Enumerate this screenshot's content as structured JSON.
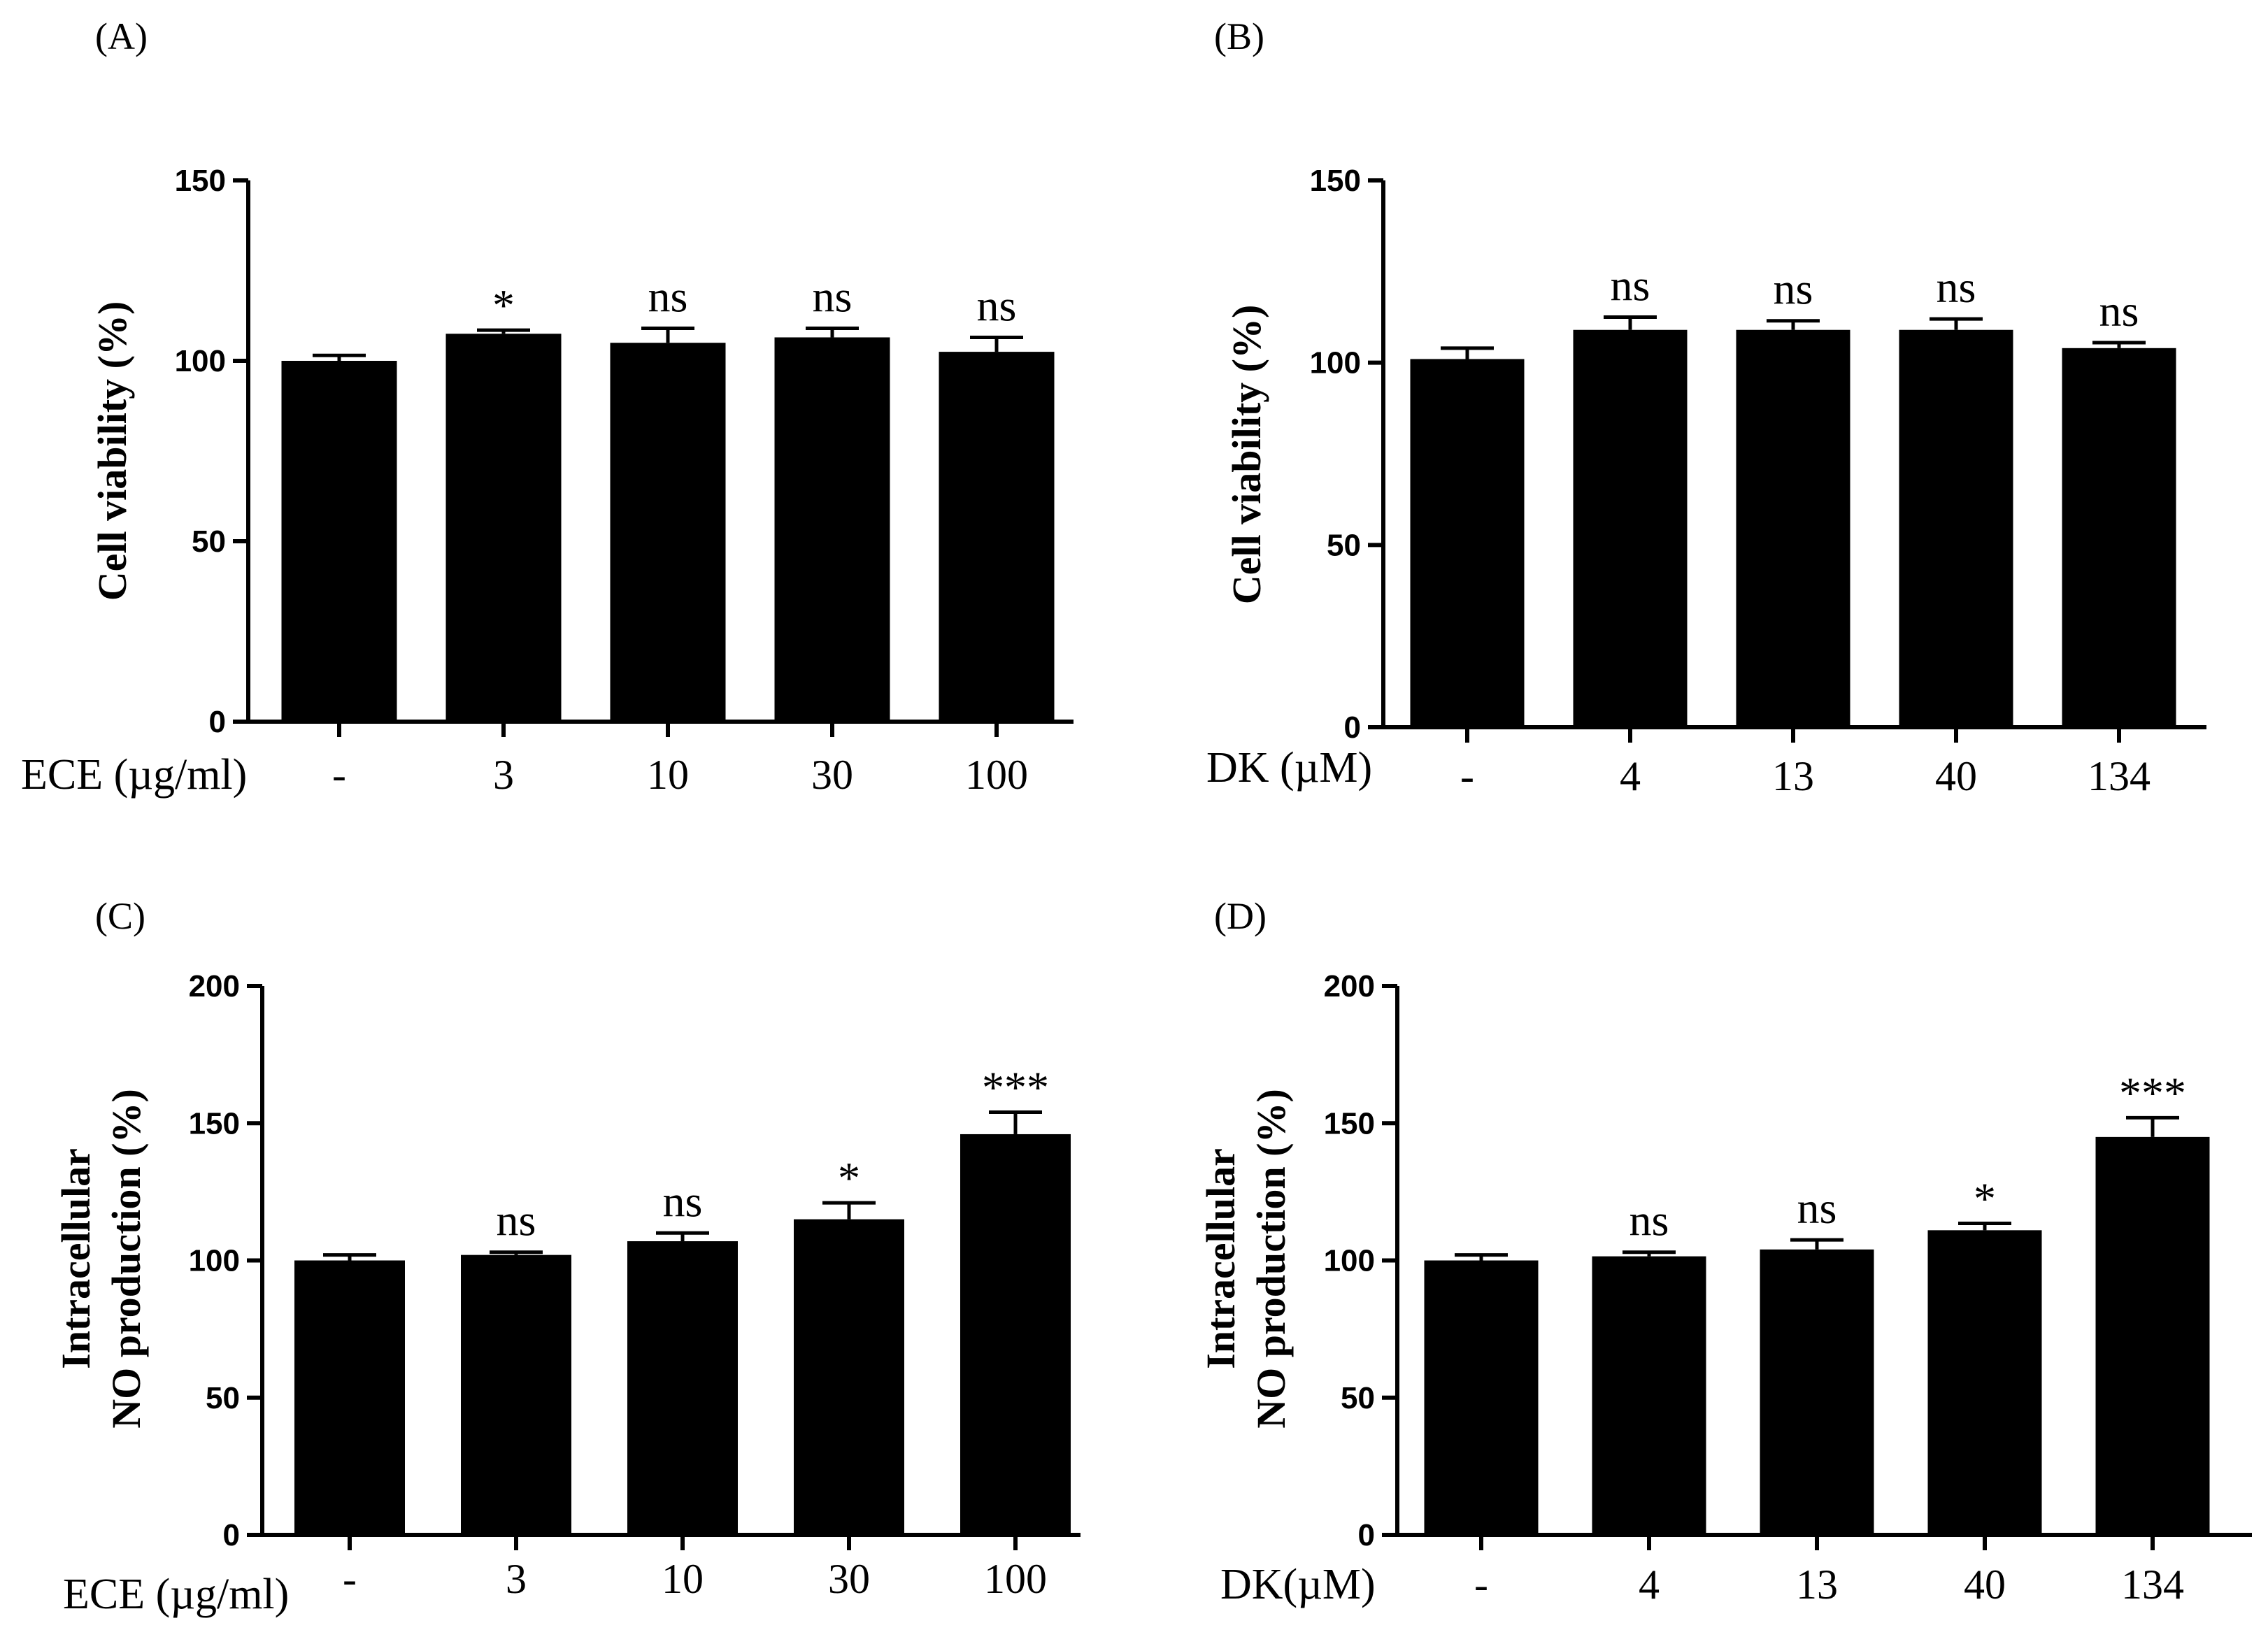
{
  "chart_data": [
    {
      "panel": "(A)",
      "type": "bar",
      "ylabel": "Cell viability (%)",
      "xlabel": "ECE (µg/ml)",
      "categories": [
        "-",
        "3",
        "10",
        "30",
        "100"
      ],
      "values": [
        100,
        107.5,
        105,
        106.5,
        102.5
      ],
      "errors": [
        1.5,
        1,
        4,
        2.5,
        4
      ],
      "significance": [
        "",
        "*",
        "ns",
        "ns",
        "ns"
      ],
      "ylim": [
        0,
        150
      ],
      "yticks": [
        "0",
        "50",
        "100",
        "150"
      ]
    },
    {
      "panel": "(B)",
      "type": "bar",
      "ylabel": "Cell viability (%)",
      "xlabel": "DK (µM)",
      "categories": [
        "-",
        "4",
        "13",
        "40",
        "134"
      ],
      "values": [
        101,
        109,
        109,
        109,
        104
      ],
      "errors": [
        3,
        3.5,
        2.5,
        3,
        1.5
      ],
      "significance": [
        "",
        "ns",
        "ns",
        "ns",
        "ns"
      ],
      "ylim": [
        0,
        150
      ],
      "yticks": [
        "0",
        "50",
        "100",
        "150"
      ]
    },
    {
      "panel": "(C)",
      "type": "bar",
      "ylabel_lines": [
        "Intracellular",
        "NO production (%)"
      ],
      "xlabel": "ECE (µg/ml)",
      "categories": [
        "-",
        "3",
        "10",
        "30",
        "100"
      ],
      "values": [
        100,
        102,
        107,
        115,
        146
      ],
      "errors": [
        2,
        1,
        3,
        6,
        8
      ],
      "significance": [
        "",
        "ns",
        "ns",
        "*",
        "***"
      ],
      "ylim": [
        0,
        200
      ],
      "yticks": [
        "0",
        "50",
        "100",
        "150",
        "200"
      ]
    },
    {
      "panel": "(D)",
      "type": "bar",
      "ylabel_lines": [
        "Intracellular",
        "NO production (%)"
      ],
      "xlabel": "DK(µM)",
      "categories": [
        "-",
        "4",
        "13",
        "40",
        "134"
      ],
      "values": [
        100,
        101.5,
        104,
        111,
        145
      ],
      "errors": [
        2,
        1.5,
        3.5,
        2.5,
        7
      ],
      "significance": [
        "",
        "ns",
        "ns",
        "*",
        "***"
      ],
      "ylim": [
        0,
        200
      ],
      "yticks": [
        "0",
        "50",
        "100",
        "150",
        "200"
      ]
    }
  ]
}
